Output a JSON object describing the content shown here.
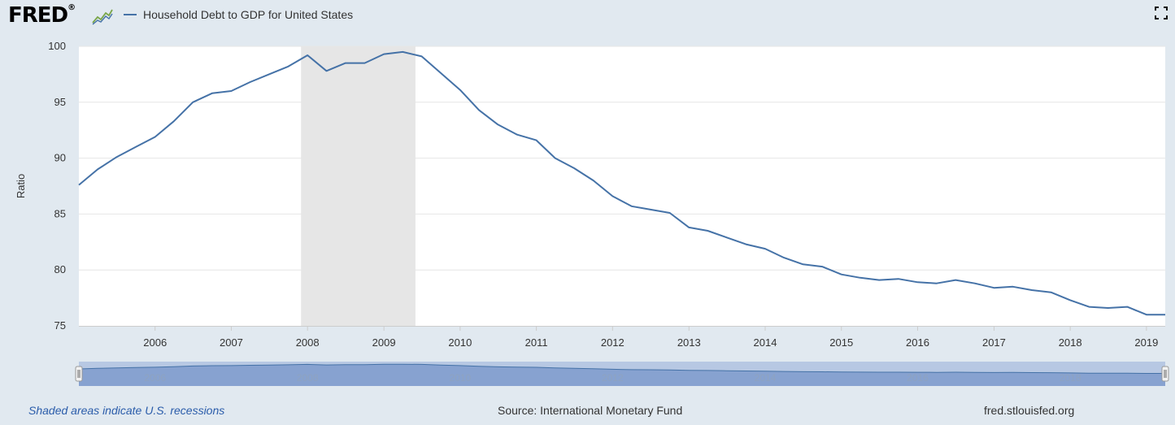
{
  "header": {
    "logo_text": "FRED",
    "logo_mark": "®",
    "logo_icon": "line-graph-icon",
    "fullscreen_icon": "fullscreen-icon"
  },
  "colors": {
    "series": "#4572a7",
    "recession": "#e6e6e6",
    "background": "#e1e9f0",
    "plot": "#ffffff",
    "navigator_fill": "#7f9bcd",
    "navigator_bg": "#b7c8e3"
  },
  "chart_data": {
    "type": "line",
    "title": "",
    "xlabel": "",
    "ylabel": "Ratio",
    "ylim": [
      75,
      100
    ],
    "xlim": [
      "2005-01-01",
      "2019-04-01"
    ],
    "y_ticks": [
      75,
      80,
      85,
      90,
      95,
      100
    ],
    "x_ticks": [
      "2006",
      "2007",
      "2008",
      "2009",
      "2010",
      "2011",
      "2012",
      "2013",
      "2014",
      "2015",
      "2016",
      "2017",
      "2018",
      "2019"
    ],
    "grid": true,
    "legend": "top-left",
    "recessions": [
      [
        "2007-12-01",
        "2009-06-01"
      ]
    ],
    "navigator_ticks": [
      "2006",
      "2008",
      "2010",
      "2012",
      "2014",
      "2016",
      "2018"
    ],
    "series": [
      {
        "name": "Household Debt to GDP for United States",
        "x": [
          "2005-01-01",
          "2005-04-01",
          "2005-07-01",
          "2005-10-01",
          "2006-01-01",
          "2006-04-01",
          "2006-07-01",
          "2006-10-01",
          "2007-01-01",
          "2007-04-01",
          "2007-07-01",
          "2007-10-01",
          "2008-01-01",
          "2008-04-01",
          "2008-07-01",
          "2008-10-01",
          "2009-01-01",
          "2009-04-01",
          "2009-07-01",
          "2009-10-01",
          "2010-01-01",
          "2010-04-01",
          "2010-07-01",
          "2010-10-01",
          "2011-01-01",
          "2011-04-01",
          "2011-07-01",
          "2011-10-01",
          "2012-01-01",
          "2012-04-01",
          "2012-07-01",
          "2012-10-01",
          "2013-01-01",
          "2013-04-01",
          "2013-07-01",
          "2013-10-01",
          "2014-01-01",
          "2014-04-01",
          "2014-07-01",
          "2014-10-01",
          "2015-01-01",
          "2015-04-01",
          "2015-07-01",
          "2015-10-01",
          "2016-01-01",
          "2016-04-01",
          "2016-07-01",
          "2016-10-01",
          "2017-01-01",
          "2017-04-01",
          "2017-07-01",
          "2017-10-01",
          "2018-01-01",
          "2018-04-01",
          "2018-07-01",
          "2018-10-01",
          "2019-01-01",
          "2019-04-01"
        ],
        "values": [
          87.6,
          89.0,
          90.1,
          91.0,
          91.9,
          93.3,
          95.0,
          95.8,
          96.0,
          96.8,
          97.5,
          98.2,
          99.2,
          97.8,
          98.5,
          98.5,
          99.3,
          99.5,
          99.1,
          97.6,
          96.1,
          94.3,
          93.0,
          92.1,
          91.6,
          90.0,
          89.1,
          88.0,
          86.6,
          85.7,
          85.4,
          85.1,
          83.8,
          83.5,
          82.9,
          82.3,
          81.9,
          81.1,
          80.5,
          80.3,
          79.6,
          79.3,
          79.1,
          79.2,
          78.9,
          78.8,
          79.1,
          78.8,
          78.4,
          78.5,
          78.2,
          78.0,
          77.3,
          76.7,
          76.6,
          76.7,
          76.0,
          76.0
        ]
      }
    ]
  },
  "footer": {
    "note": "Shaded areas indicate U.S. recessions",
    "source": "Source: International Monetary Fund",
    "url": "fred.stlouisfed.org"
  }
}
